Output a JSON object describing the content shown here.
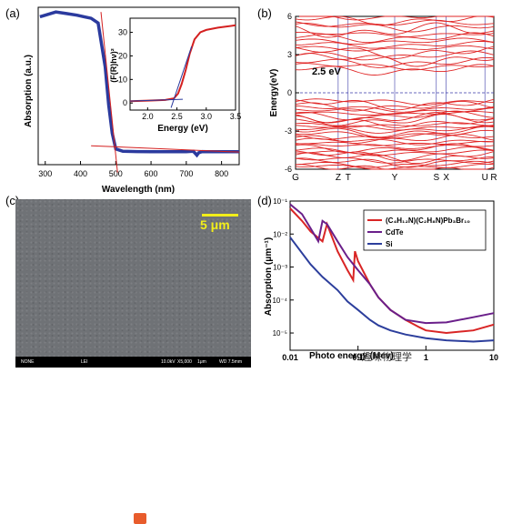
{
  "chart_data": [
    {
      "panel": "(a)",
      "type": "line",
      "xlabel": "Wavelength (nm)",
      "ylabel": "Absorption (a.u.)",
      "xlim": [
        280,
        850
      ],
      "xticks": [
        "300",
        "400",
        "500",
        "600",
        "700",
        "800"
      ],
      "series": [
        {
          "color": "#2b3a9e",
          "x": [
            285,
            300,
            330,
            360,
            390,
            410,
            430,
            450,
            470,
            480,
            490,
            500,
            520,
            560,
            600,
            650,
            700,
            720,
            730,
            735,
            745,
            760,
            800,
            850
          ],
          "y": [
            0.94,
            0.95,
            0.97,
            0.96,
            0.95,
            0.94,
            0.93,
            0.9,
            0.62,
            0.38,
            0.2,
            0.1,
            0.085,
            0.083,
            0.082,
            0.082,
            0.082,
            0.085,
            0.06,
            0.075,
            0.083,
            0.082,
            0.082,
            0.082
          ]
        }
      ],
      "inset": {
        "xlabel": "Energy (eV)",
        "ylabel": "(F(R)hν)²",
        "xlim": [
          1.7,
          3.5
        ],
        "ylim": [
          -3,
          36
        ],
        "xticks": [
          "2.0",
          "2.5",
          "3.0",
          "3.5"
        ],
        "yticks": [
          "0",
          "10",
          "20",
          "30"
        ],
        "series": [
          {
            "color": "#d42020",
            "x": [
              1.7,
              2.0,
              2.3,
              2.45,
              2.52,
              2.58,
              2.65,
              2.72,
              2.8,
              2.9,
              3.0,
              3.2,
              3.5
            ],
            "y": [
              0.8,
              1.0,
              1.3,
              2.0,
              4,
              8,
              14,
              21,
              27,
              30,
              31,
              32,
              33
            ]
          }
        ]
      }
    },
    {
      "panel": "(b)",
      "type": "line",
      "ylabel": "Energy(eV)",
      "ylim": [
        -6,
        6
      ],
      "yticks": [
        "6",
        "3",
        "0",
        "-3",
        "-6"
      ],
      "xticks": [
        "G",
        "Z",
        "T",
        "Y",
        "S",
        "X",
        "U",
        "R"
      ],
      "annotation": "2.5 eV",
      "vb_range": [
        -6,
        -0.7
      ],
      "cb_range": [
        1.8,
        6
      ]
    },
    {
      "panel": "(c)",
      "type": "other",
      "scale": "5 μm"
    },
    {
      "panel": "(d)",
      "type": "line",
      "xlabel": "Photo energy (Mev)",
      "ylabel": "Absorption (μm⁻¹)",
      "xlog": true,
      "ylog": true,
      "xlim": [
        0.01,
        10
      ],
      "ylim": [
        3e-06,
        0.1
      ],
      "xticks": [
        "0.01",
        "0.1",
        "1",
        "10"
      ],
      "yticks": [
        "10⁻¹",
        "10⁻²",
        "10⁻³",
        "10⁻⁴",
        "10⁻⁵"
      ],
      "series": [
        {
          "name": "(C₄H₁₂N)(C₂H₈N)Pb₃Br₁₀",
          "color": "#d92525",
          "x": [
            0.01,
            0.015,
            0.02,
            0.03,
            0.035,
            0.05,
            0.07,
            0.085,
            0.09,
            0.1,
            0.15,
            0.2,
            0.3,
            0.5,
            0.8,
            1,
            2,
            5,
            10
          ],
          "y": [
            0.06,
            0.025,
            0.012,
            0.006,
            0.02,
            0.003,
            0.0008,
            0.0004,
            0.003,
            0.0015,
            0.0003,
            0.00012,
            5e-05,
            2.5e-05,
            1.5e-05,
            1.2e-05,
            1e-05,
            1.2e-05,
            1.8e-05
          ]
        },
        {
          "name": "CdTe",
          "color": "#6a1f8a",
          "x": [
            0.01,
            0.015,
            0.02,
            0.026,
            0.03,
            0.035,
            0.05,
            0.07,
            0.1,
            0.15,
            0.2,
            0.3,
            0.5,
            1,
            2,
            5,
            10
          ],
          "y": [
            0.08,
            0.04,
            0.015,
            0.006,
            0.025,
            0.02,
            0.006,
            0.002,
            0.0008,
            0.0003,
            0.00012,
            5e-05,
            2.5e-05,
            2e-05,
            2.1e-05,
            3e-05,
            4e-05
          ]
        },
        {
          "name": "Si",
          "color": "#2c3e9c",
          "x": [
            0.01,
            0.02,
            0.03,
            0.05,
            0.07,
            0.1,
            0.15,
            0.2,
            0.3,
            0.5,
            1,
            2,
            5,
            10
          ],
          "y": [
            0.008,
            0.0012,
            0.0005,
            0.0002,
            9e-05,
            5e-05,
            2.5e-05,
            1.7e-05,
            1.2e-05,
            9e-06,
            7e-06,
            6e-06,
            5.5e-06,
            6e-06
          ]
        }
      ]
    }
  ],
  "sem": {
    "footer": [
      "NONE",
      "LEI",
      "10.0kV",
      "X5,000",
      "1μm",
      "WD 7.5mm"
    ]
  },
  "watermark": "趣味物理学"
}
